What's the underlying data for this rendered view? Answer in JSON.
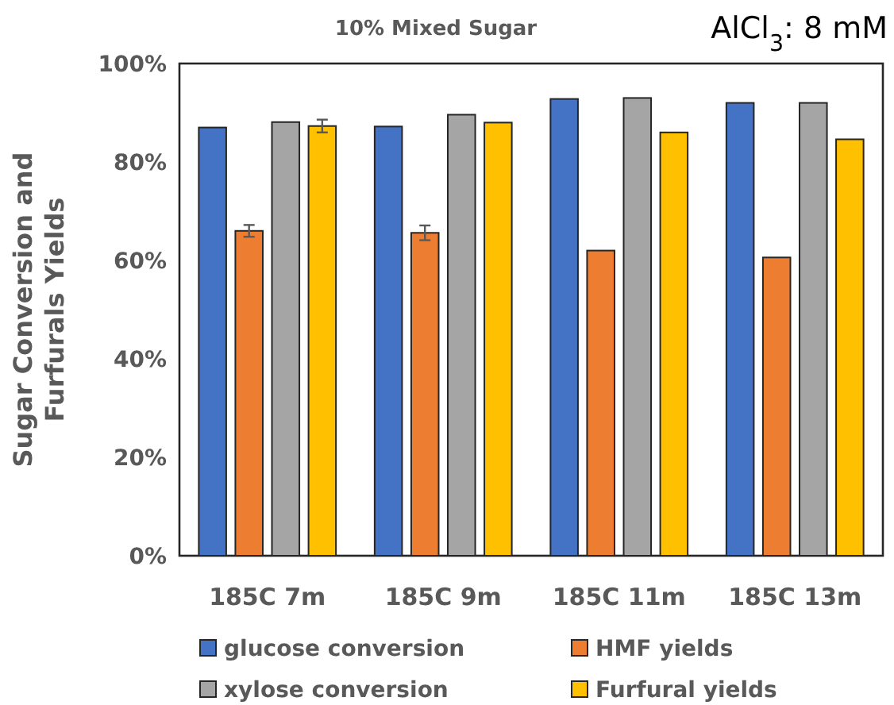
{
  "chart_data": {
    "type": "bar",
    "title": "10% Mixed Sugar",
    "annotations": [
      "AlCl$_{3}$: 8 mM"
    ],
    "ylabel": "Sugar Conversion and Furfurals Yields",
    "categories": [
      "185C 7m",
      "185C 9m",
      "185C 11m",
      "185C 13m"
    ],
    "series": [
      {
        "name": "glucose conversion",
        "color": "#4472c4",
        "values": [
          87,
          87.2,
          92.8,
          92
        ]
      },
      {
        "name": "HMF yields",
        "color": "#ed7d31",
        "values": [
          66,
          65.6,
          62,
          60.6
        ],
        "errors": [
          1.2,
          1.5,
          null,
          null
        ]
      },
      {
        "name": "xylose conversion",
        "color": "#a5a5a5",
        "values": [
          88.1,
          89.6,
          93,
          92
        ]
      },
      {
        "name": "Furfural yields",
        "color": "#ffc000",
        "values": [
          87.3,
          88,
          86,
          84.6
        ],
        "errors": [
          1.3,
          null,
          null,
          null
        ]
      }
    ],
    "ylim": [
      0,
      100
    ],
    "yticks": [
      {
        "value": 0,
        "label": "0%"
      },
      {
        "value": 20,
        "label": "20%"
      },
      {
        "value": 40,
        "label": "40%"
      },
      {
        "value": 60,
        "label": "60%"
      },
      {
        "value": 80,
        "label": "80%"
      },
      {
        "value": 100,
        "label": "100%"
      }
    ],
    "grid": false,
    "legend": "bottom"
  }
}
